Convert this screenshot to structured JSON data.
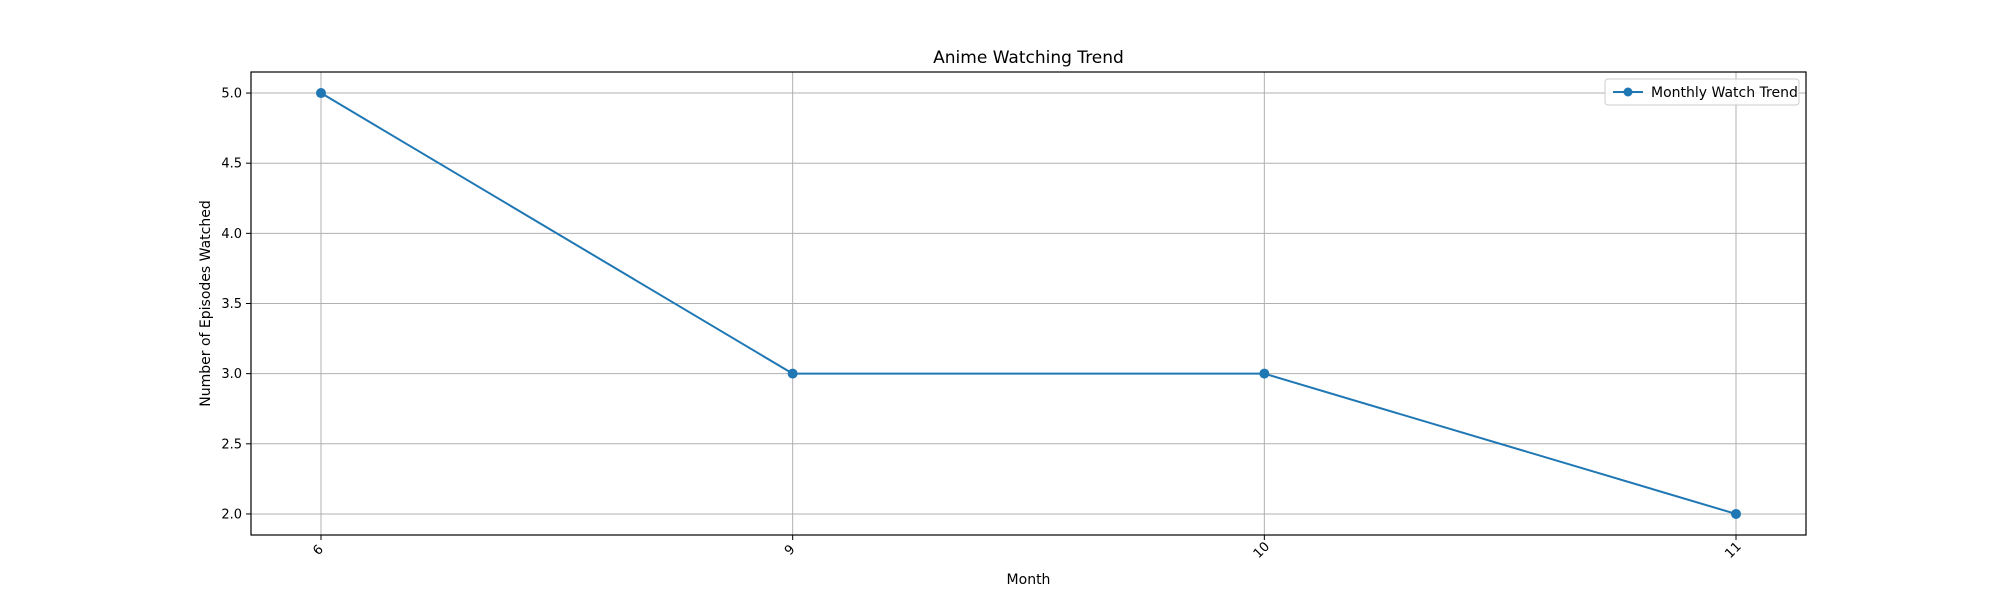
{
  "chart_data": {
    "type": "line",
    "title": "Anime Watching Trend",
    "xlabel": "Month",
    "ylabel": "Number of Episodes Watched",
    "categories": [
      "6",
      "9",
      "10",
      "11"
    ],
    "series": [
      {
        "name": "Monthly Watch Trend",
        "values": [
          5,
          3,
          3,
          2
        ],
        "color": "#1f77b4",
        "marker": "circle"
      }
    ],
    "ylim": [
      1.85,
      5.15
    ],
    "yticks": [
      "2.0",
      "2.5",
      "3.0",
      "3.5",
      "4.0",
      "4.5",
      "5.0"
    ],
    "grid": true,
    "legend_position": "top-right",
    "xtick_rotation": -45
  }
}
